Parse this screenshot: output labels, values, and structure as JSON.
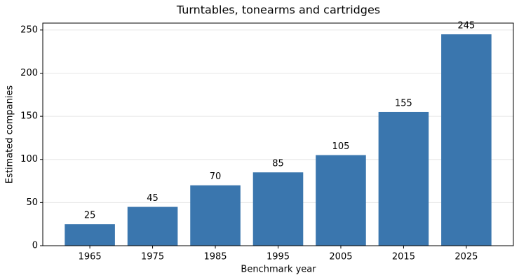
{
  "chart_data": {
    "type": "bar",
    "title": "Turntables, tonearms and cartridges",
    "x_label": "Benchmark year",
    "y_label": "Estimated companies",
    "categories": [
      "1965",
      "1975",
      "1985",
      "1995",
      "2005",
      "2015",
      "2025"
    ],
    "values": [
      25,
      45,
      70,
      85,
      105,
      155,
      245
    ],
    "color": "#3a76ae",
    "ylim": [
      0,
      258
    ],
    "yticks": [
      0,
      50,
      100,
      150,
      200,
      250
    ],
    "grid": true
  }
}
